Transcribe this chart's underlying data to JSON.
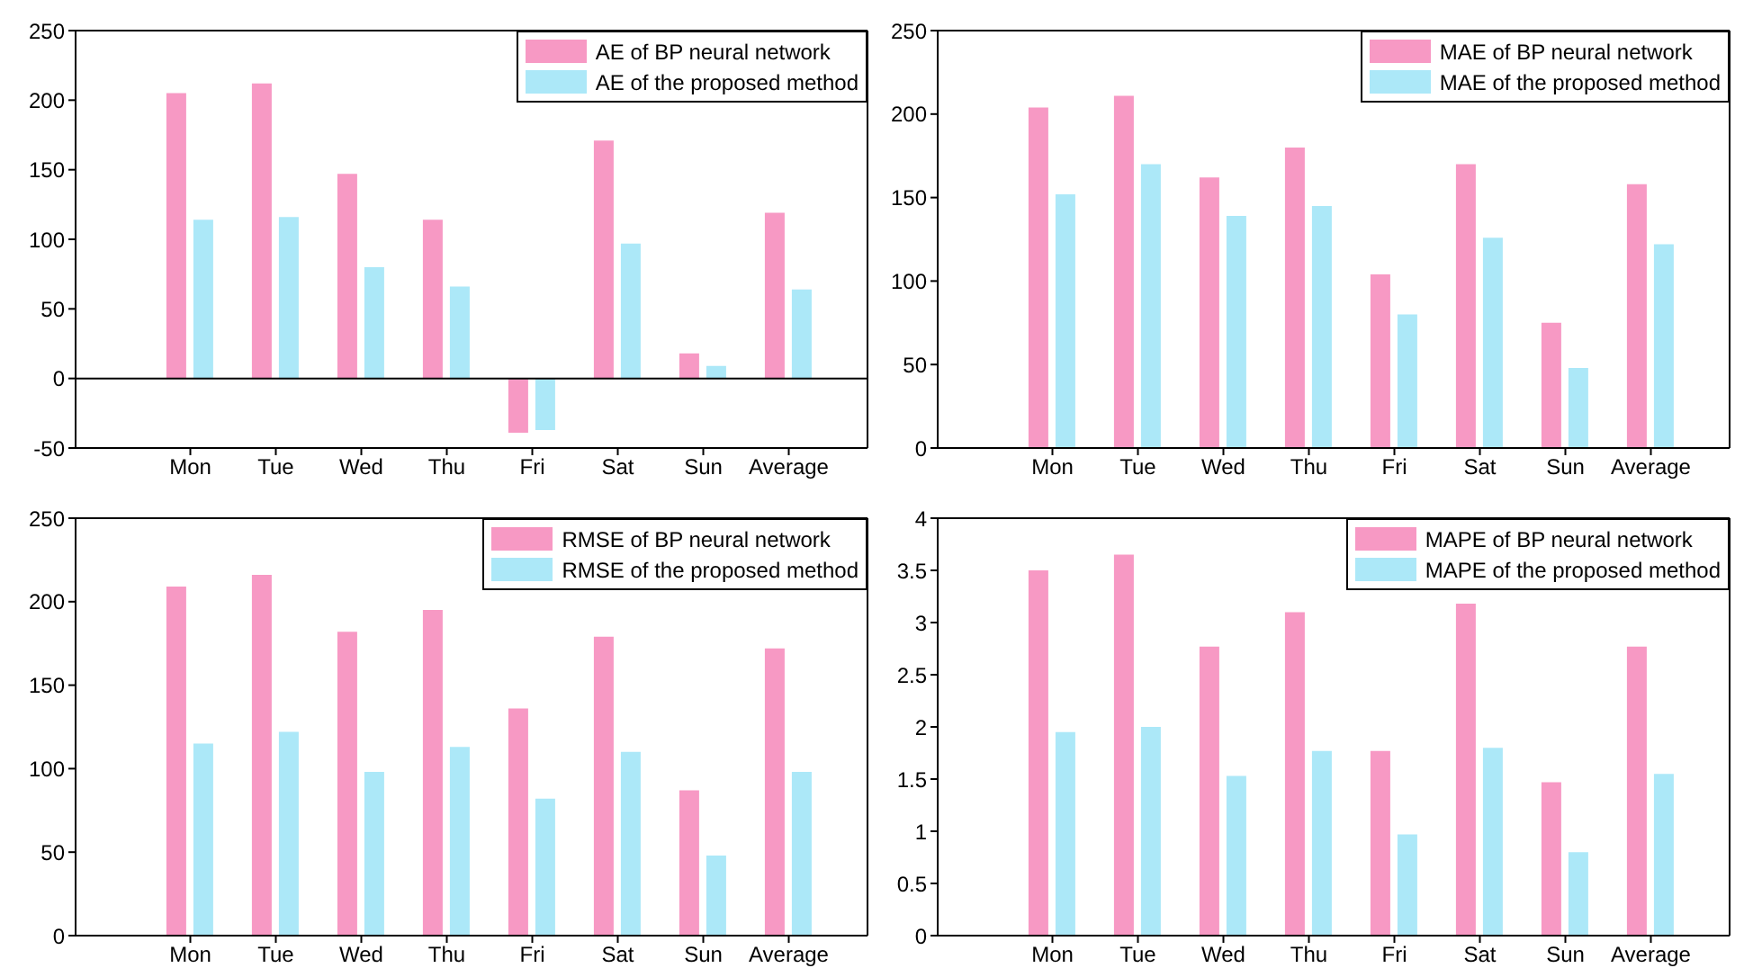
{
  "chart_data": [
    {
      "type": "bar",
      "categories": [
        "Mon",
        "Tue",
        "Wed",
        "Thu",
        "Fri",
        "Sat",
        "Sun",
        "Average"
      ],
      "series": [
        {
          "name": "AE of BP neural network",
          "color": "#f799c4",
          "values": [
            205,
            212,
            147,
            114,
            -39,
            171,
            18,
            119
          ]
        },
        {
          "name": "AE of the proposed method",
          "color": "#ace8f8",
          "values": [
            114,
            116,
            80,
            66,
            -37,
            97,
            9,
            64
          ]
        }
      ],
      "ylim": [
        -50,
        250
      ],
      "yticks": [
        -50,
        0,
        50,
        100,
        150,
        200,
        250
      ],
      "ref_lines": [
        {
          "axis": "y",
          "value": 0,
          "color": "#000000"
        }
      ],
      "legend": "top right",
      "grid": false
    },
    {
      "type": "bar",
      "categories": [
        "Mon",
        "Tue",
        "Wed",
        "Thu",
        "Fri",
        "Sat",
        "Sun",
        "Average"
      ],
      "series": [
        {
          "name": "MAE of BP neural network",
          "color": "#f799c4",
          "values": [
            204,
            211,
            162,
            180,
            104,
            170,
            75,
            158
          ]
        },
        {
          "name": "MAE of the proposed method",
          "color": "#ace8f8",
          "values": [
            152,
            170,
            139,
            145,
            80,
            126,
            48,
            122
          ]
        }
      ],
      "ylim": [
        0,
        250
      ],
      "yticks": [
        0,
        50,
        100,
        150,
        200,
        250
      ],
      "legend": "top right",
      "grid": false
    },
    {
      "type": "bar",
      "categories": [
        "Mon",
        "Tue",
        "Wed",
        "Thu",
        "Fri",
        "Sat",
        "Sun",
        "Average"
      ],
      "series": [
        {
          "name": "RMSE of BP neural network",
          "color": "#f799c4",
          "values": [
            209,
            216,
            182,
            195,
            136,
            179,
            87,
            172
          ]
        },
        {
          "name": "RMSE of the proposed method",
          "color": "#ace8f8",
          "values": [
            115,
            122,
            98,
            113,
            82,
            110,
            48,
            98
          ]
        }
      ],
      "ylim": [
        0,
        250
      ],
      "yticks": [
        0,
        50,
        100,
        150,
        200,
        250
      ],
      "legend": "top right",
      "grid": false
    },
    {
      "type": "bar",
      "categories": [
        "Mon",
        "Tue",
        "Wed",
        "Thu",
        "Fri",
        "Sat",
        "Sun",
        "Average"
      ],
      "series": [
        {
          "name": "MAPE of BP neural network",
          "color": "#f799c4",
          "values": [
            3.5,
            3.65,
            2.77,
            3.1,
            1.77,
            3.18,
            1.47,
            2.77
          ]
        },
        {
          "name": "MAPE of the proposed method",
          "color": "#ace8f8",
          "values": [
            1.95,
            2.0,
            1.53,
            1.77,
            0.97,
            1.8,
            0.8,
            1.55
          ]
        }
      ],
      "ylim": [
        0,
        4
      ],
      "yticks": [
        0,
        0.5,
        1,
        1.5,
        2,
        2.5,
        3,
        3.5,
        4
      ],
      "legend": "top right",
      "grid": false
    }
  ]
}
